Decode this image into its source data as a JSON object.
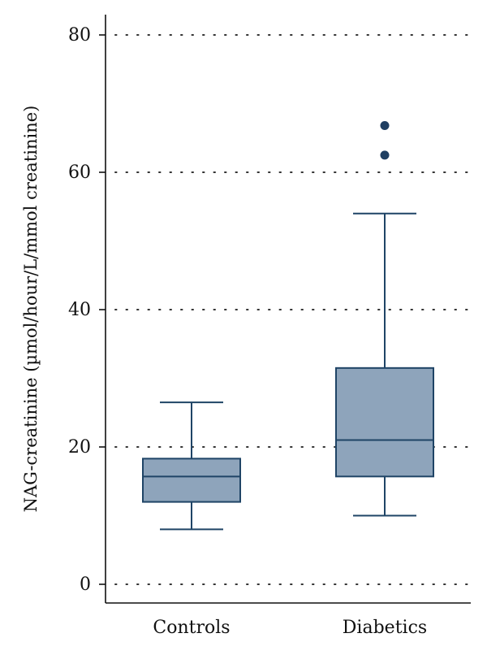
{
  "chart_data": {
    "type": "boxplot",
    "title": "",
    "xlabel": "",
    "ylabel": "NAG-creatinine (µmol/hour/L/mmol creatinine)",
    "ylim": [
      0,
      80
    ],
    "yticks": [
      0,
      20,
      40,
      60,
      80
    ],
    "grid": "horizontal dotted",
    "categories": [
      "Controls",
      "Diabetics"
    ],
    "boxes": [
      {
        "category": "Controls",
        "whisker_low": 8,
        "q1": 12,
        "median": 15.7,
        "q3": 18.3,
        "whisker_high": 26.5,
        "outliers": []
      },
      {
        "category": "Diabetics",
        "whisker_low": 10,
        "q1": 15.7,
        "median": 21,
        "q3": 31.5,
        "whisker_high": 54,
        "outliers": [
          62.5,
          66.8
        ]
      }
    ],
    "colors": {
      "box_fill": "#8ea4bb",
      "box_stroke": "#1f4466",
      "outlier": "#1f3f62",
      "axis": "#111111",
      "grid": "#333333"
    }
  }
}
